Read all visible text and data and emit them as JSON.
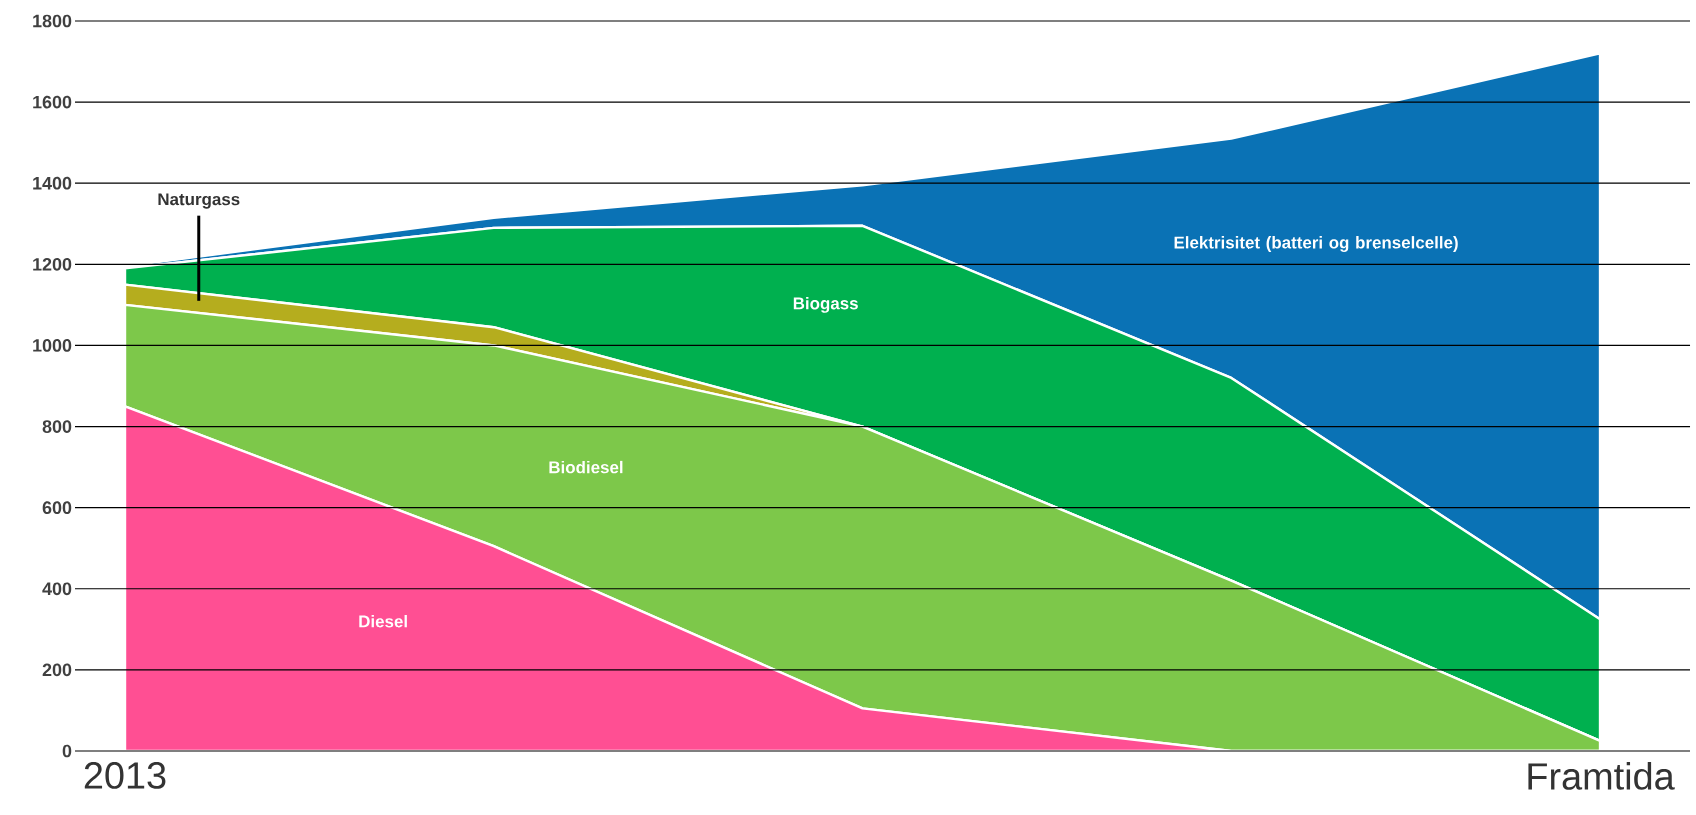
{
  "chart_data": {
    "type": "area",
    "stacked": true,
    "categories": [
      "2013",
      null,
      null,
      null,
      "Framtida"
    ],
    "ylim": [
      0,
      1800
    ],
    "yticks": [
      0,
      200,
      400,
      600,
      800,
      1000,
      1200,
      1400,
      1600,
      1800
    ],
    "grid": "y",
    "series": [
      {
        "name": "Diesel",
        "color": "#ff4f93",
        "values": [
          850,
          505,
          105,
          0,
          0
        ]
      },
      {
        "name": "Biodiesel",
        "color": "#7dc84a",
        "values": [
          250,
          495,
          695,
          420,
          25
        ]
      },
      {
        "name": "Naturgass",
        "color": "#b5ad1e",
        "values": [
          50,
          45,
          0,
          0,
          0
        ]
      },
      {
        "name": "Biogass",
        "color": "#00b04f",
        "values": [
          40,
          245,
          495,
          500,
          300
        ]
      },
      {
        "name": "Elektrisitet (batteri og brenselcelle)",
        "color": "#0a72b5",
        "values": [
          5,
          25,
          100,
          590,
          1395
        ]
      }
    ]
  }
}
